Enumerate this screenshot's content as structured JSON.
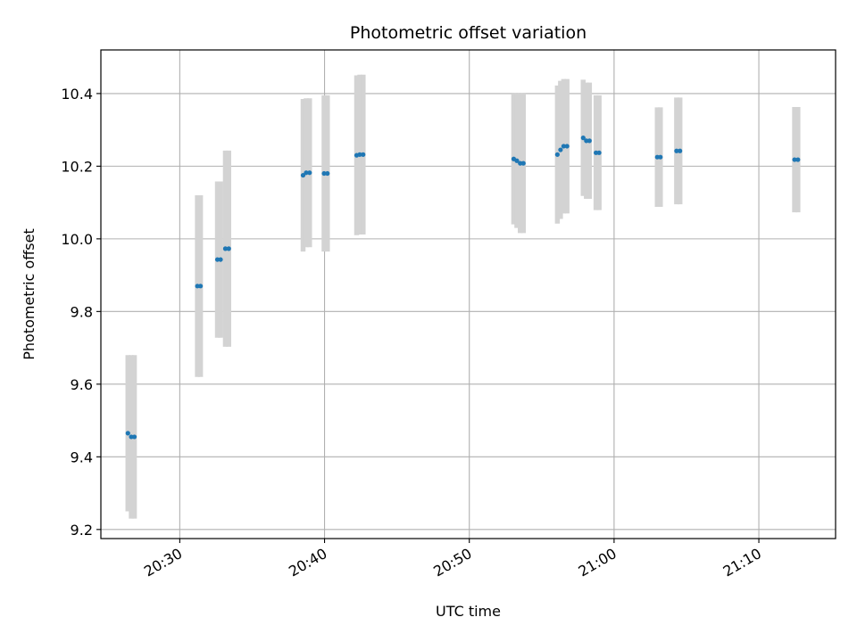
{
  "chart_data": {
    "type": "scatter",
    "title": "Photometric offset variation",
    "xlabel": "UTC time",
    "ylabel": "Photometric offset",
    "x_ticks": [
      "20:30",
      "20:40",
      "20:50",
      "21:00",
      "21:10"
    ],
    "y_ticks": [
      "9.2",
      "9.4",
      "9.6",
      "9.8",
      "10.0",
      "10.2",
      "10.4"
    ],
    "xlim": [
      "20:24:33",
      "21:15:18"
    ],
    "ylim": [
      9.175,
      10.52
    ],
    "grid": true,
    "marker_color": "#1f77b4",
    "errorbar_color": "#d3d3d3",
    "points": [
      {
        "t": "20:26:25",
        "y": 9.465,
        "err": 0.215
      },
      {
        "t": "20:26:39",
        "y": 9.455,
        "err": 0.225
      },
      {
        "t": "20:26:52",
        "y": 9.455,
        "err": 0.225
      },
      {
        "t": "20:31:13",
        "y": 9.87,
        "err": 0.25
      },
      {
        "t": "20:31:26",
        "y": 9.87,
        "err": 0.25
      },
      {
        "t": "20:32:36",
        "y": 9.943,
        "err": 0.215
      },
      {
        "t": "20:32:49",
        "y": 9.943,
        "err": 0.215
      },
      {
        "t": "20:33:09",
        "y": 9.973,
        "err": 0.27
      },
      {
        "t": "20:33:23",
        "y": 9.973,
        "err": 0.27
      },
      {
        "t": "20:38:31",
        "y": 10.175,
        "err": 0.21
      },
      {
        "t": "20:38:44",
        "y": 10.182,
        "err": 0.205
      },
      {
        "t": "20:38:58",
        "y": 10.182,
        "err": 0.205
      },
      {
        "t": "20:39:58",
        "y": 10.18,
        "err": 0.215
      },
      {
        "t": "20:40:12",
        "y": 10.18,
        "err": 0.215
      },
      {
        "t": "20:42:13",
        "y": 10.23,
        "err": 0.22
      },
      {
        "t": "20:42:26",
        "y": 10.232,
        "err": 0.22
      },
      {
        "t": "20:42:40",
        "y": 10.232,
        "err": 0.22
      },
      {
        "t": "20:53:04",
        "y": 10.22,
        "err": 0.18
      },
      {
        "t": "20:53:17",
        "y": 10.215,
        "err": 0.185
      },
      {
        "t": "20:53:31",
        "y": 10.208,
        "err": 0.192
      },
      {
        "t": "20:53:44",
        "y": 10.208,
        "err": 0.192
      },
      {
        "t": "20:56:05",
        "y": 10.232,
        "err": 0.19
      },
      {
        "t": "20:56:18",
        "y": 10.245,
        "err": 0.19
      },
      {
        "t": "20:56:31",
        "y": 10.255,
        "err": 0.185
      },
      {
        "t": "20:56:45",
        "y": 10.255,
        "err": 0.185
      },
      {
        "t": "20:57:52",
        "y": 10.278,
        "err": 0.16
      },
      {
        "t": "20:58:05",
        "y": 10.27,
        "err": 0.16
      },
      {
        "t": "20:58:18",
        "y": 10.27,
        "err": 0.16
      },
      {
        "t": "20:58:45",
        "y": 10.237,
        "err": 0.158
      },
      {
        "t": "20:58:58",
        "y": 10.237,
        "err": 0.158
      },
      {
        "t": "21:02:59",
        "y": 10.225,
        "err": 0.137
      },
      {
        "t": "21:03:12",
        "y": 10.225,
        "err": 0.137
      },
      {
        "t": "21:04:19",
        "y": 10.242,
        "err": 0.147
      },
      {
        "t": "21:04:33",
        "y": 10.242,
        "err": 0.147
      },
      {
        "t": "21:12:28",
        "y": 10.218,
        "err": 0.145
      },
      {
        "t": "21:12:42",
        "y": 10.218,
        "err": 0.145
      }
    ]
  }
}
